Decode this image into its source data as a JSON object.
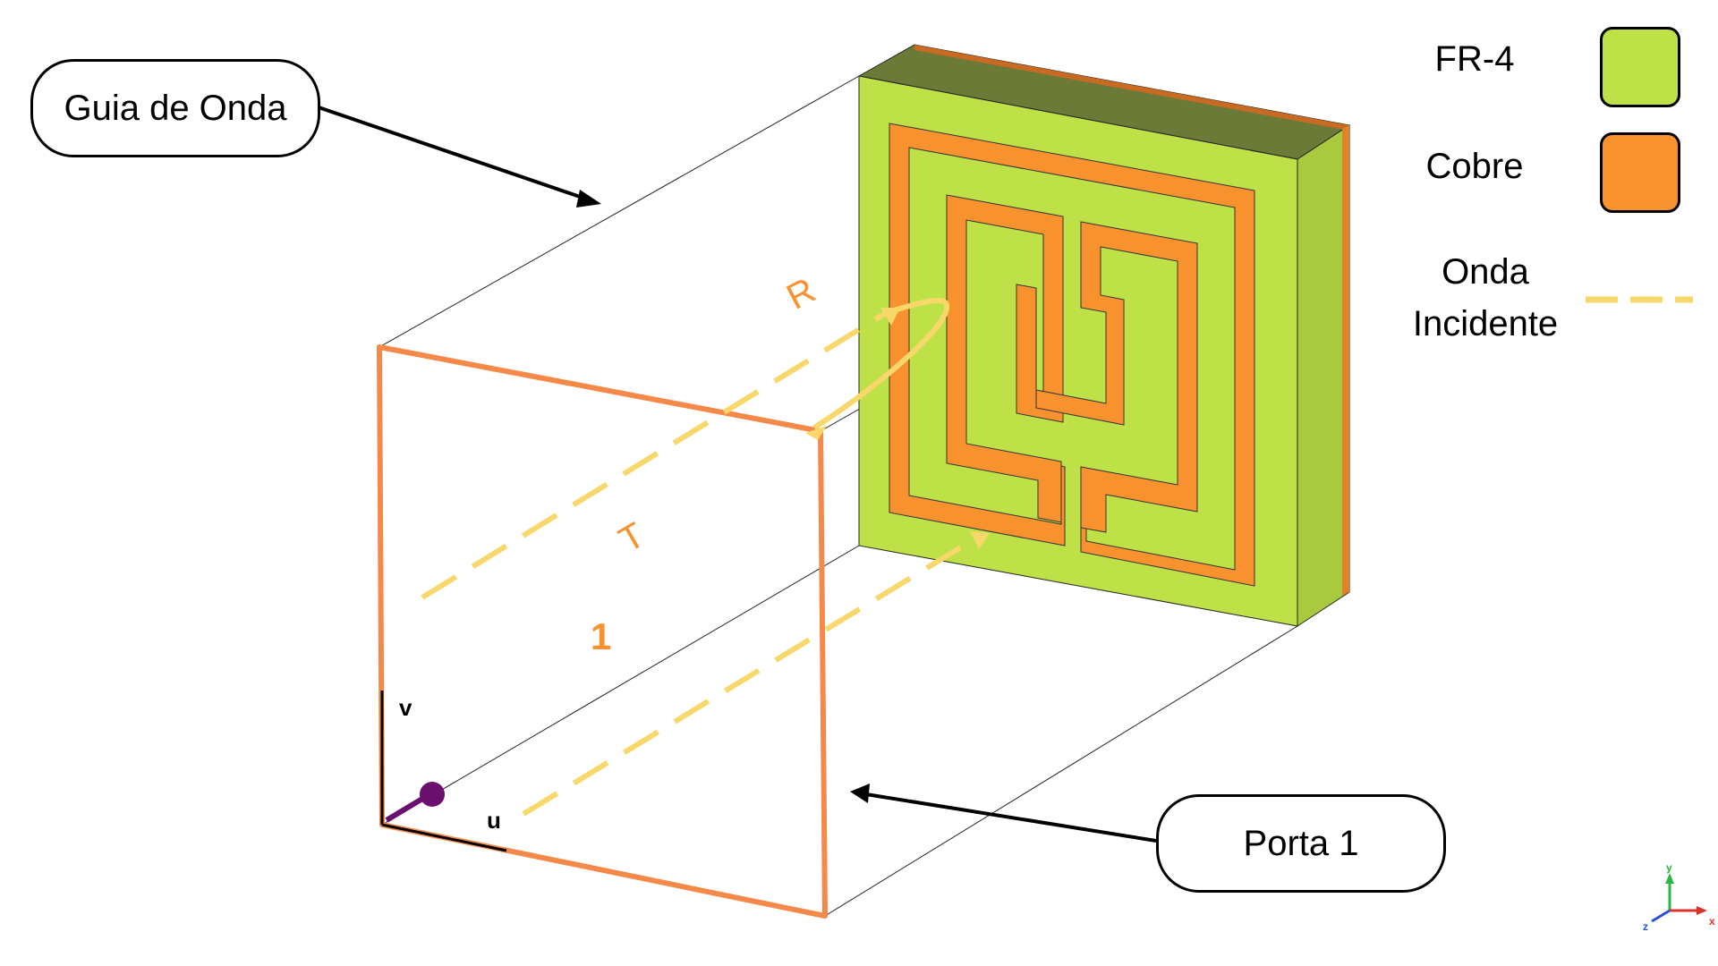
{
  "callouts": {
    "waveguide": "Guia de Onda",
    "port": "Porta 1"
  },
  "legend": {
    "fr4": {
      "label": "FR-4",
      "color": "#bde146"
    },
    "copper": {
      "label": "Cobre",
      "color": "#f7922e"
    },
    "wave": {
      "label_line1": "Onda",
      "label_line2": "Incidente",
      "color": "#f8d86a"
    }
  },
  "diagram_labels": {
    "reflection": "R",
    "transmission": "T",
    "port_number": "1",
    "axis_v": "v",
    "axis_u": "u"
  },
  "axes_triad": {
    "x": "x",
    "y": "y",
    "z": "z"
  },
  "colors": {
    "port_frame": "#f5894a",
    "fr4_top": "#6b7a36",
    "fr4_front": "#bde146",
    "copper": "#f7922e",
    "arrow_incident": "#f8d86a",
    "port_dot": "#6a0f6e"
  }
}
